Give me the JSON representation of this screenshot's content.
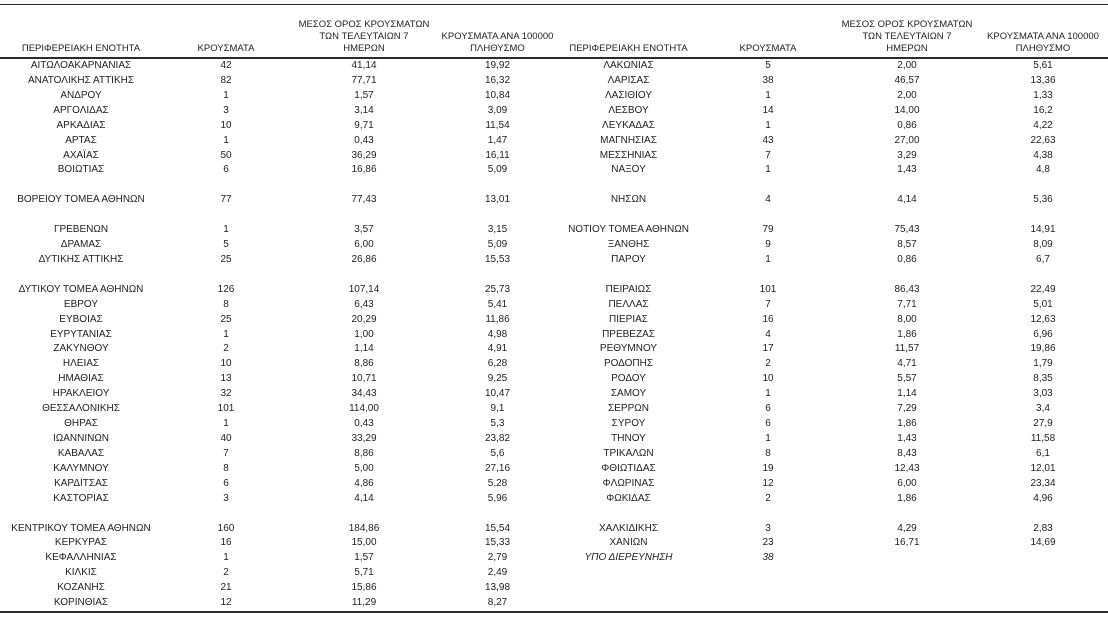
{
  "table_headers": {
    "region": "ΠΕΡΙΦΕΡΕΙΑΚΗ ΕΝΟΤΗΤΑ",
    "cases": "ΚΡΟΥΣΜΑΤΑ",
    "avg7_line1": "ΜΕΣΟΣ ΟΡΟΣ ΚΡΟΥΣΜΑΤΩΝ",
    "avg7_line2": "ΤΩΝ ΤΕΛΕΥΤΑΙΩΝ 7",
    "avg7_line3": "ΗΜΕΡΩΝ",
    "per100k_line1": "ΚΡΟΥΣΜΑΤΑ ΑΝΑ 100000",
    "per100k_line2": "ΠΛΗΘΥΣΜΟ"
  },
  "left_table_rows": [
    [
      "ΑΙΤΩΛΟΑΚΑΡΝΑΝΙΑΣ",
      "42",
      "41,14",
      "19,92"
    ],
    [
      "ΑΝΑΤΟΛΙΚΗΣ ΑΤΤΙΚΗΣ",
      "82",
      "77,71",
      "16,32"
    ],
    [
      "ΑΝΔΡΟΥ",
      "1",
      "1,57",
      "10,84"
    ],
    [
      "ΑΡΓΟΛΙΔΑΣ",
      "3",
      "3,14",
      "3,09"
    ],
    [
      "ΑΡΚΑΔΙΑΣ",
      "10",
      "9,71",
      "11,54"
    ],
    [
      "ΑΡΤΑΣ",
      "1",
      "0,43",
      "1,47"
    ],
    [
      "ΑΧΑΪΑΣ",
      "50",
      "36,29",
      "16,11"
    ],
    [
      "ΒΟΙΩΤΙΑΣ",
      "6",
      "16,86",
      "5,09"
    ],
    [],
    [
      "ΒΟΡΕΙΟΥ ΤΟΜΕΑ ΑΘΗΝΩΝ",
      "77",
      "77,43",
      "13,01"
    ],
    [],
    [
      "ΓΡΕΒΕΝΩΝ",
      "1",
      "3,57",
      "3,15"
    ],
    [
      "ΔΡΑΜΑΣ",
      "5",
      "6,00",
      "5,09"
    ],
    [
      "ΔΥΤΙΚΗΣ ΑΤΤΙΚΗΣ",
      "25",
      "26,86",
      "15,53"
    ],
    [],
    [
      "ΔΥΤΙΚΟΥ ΤΟΜΕΑ ΑΘΗΝΩΝ",
      "126",
      "107,14",
      "25,73"
    ],
    [
      "ΕΒΡΟΥ",
      "8",
      "6,43",
      "5,41"
    ],
    [
      "ΕΥΒΟΙΑΣ",
      "25",
      "20,29",
      "11,86"
    ],
    [
      "ΕΥΡΥΤΑΝΙΑΣ",
      "1",
      "1,00",
      "4,98"
    ],
    [
      "ΖΑΚΥΝΘΟΥ",
      "2",
      "1,14",
      "4,91"
    ],
    [
      "ΗΛΕΙΑΣ",
      "10",
      "8,86",
      "6,28"
    ],
    [
      "ΗΜΑΘΙΑΣ",
      "13",
      "10,71",
      "9,25"
    ],
    [
      "ΗΡΑΚΛΕΙΟΥ",
      "32",
      "34,43",
      "10,47"
    ],
    [
      "ΘΕΣΣΑΛΟΝΙΚΗΣ",
      "101",
      "114,00",
      "9,1"
    ],
    [
      "ΘΗΡΑΣ",
      "1",
      "0,43",
      "5,3"
    ],
    [
      "ΙΩΑΝΝΙΝΩΝ",
      "40",
      "33,29",
      "23,82"
    ],
    [
      "ΚΑΒΑΛΑΣ",
      "7",
      "8,86",
      "5,6"
    ],
    [
      "ΚΑΛΥΜΝΟΥ",
      "8",
      "5,00",
      "27,16"
    ],
    [
      "ΚΑΡΔΙΤΣΑΣ",
      "6",
      "4,86",
      "5,28"
    ],
    [
      "ΚΑΣΤΟΡΙΑΣ",
      "3",
      "4,14",
      "5,96"
    ],
    [],
    [
      "ΚΕΝΤΡΙΚΟΥ ΤΟΜΕΑ ΑΘΗΝΩΝ",
      "160",
      "184,86",
      "15,54"
    ],
    [
      "ΚΕΡΚΥΡΑΣ",
      "16",
      "15,00",
      "15,33"
    ],
    [
      "ΚΕΦΑΛΛΗΝΙΑΣ",
      "1",
      "1,57",
      "2,79"
    ],
    [
      "ΚΙΛΚΙΣ",
      "2",
      "5,71",
      "2,49"
    ],
    [
      "ΚΟΖΑΝΗΣ",
      "21",
      "15,86",
      "13,98"
    ],
    [
      "ΚΟΡΙΝΘΙΑΣ",
      "12",
      "11,29",
      "8,27"
    ]
  ],
  "right_table_rows": [
    [
      "ΛΑΚΩΝΙΑΣ",
      "5",
      "2,00",
      "5,61"
    ],
    [
      "ΛΑΡΙΣΑΣ",
      "38",
      "46,57",
      "13,36"
    ],
    [
      "ΛΑΣΙΘΙΟΥ",
      "1",
      "2,00",
      "1,33"
    ],
    [
      "ΛΕΣΒΟΥ",
      "14",
      "14,00",
      "16,2"
    ],
    [
      "ΛΕΥΚΑΔΑΣ",
      "1",
      "0,86",
      "4,22"
    ],
    [
      "ΜΑΓΝΗΣΙΑΣ",
      "43",
      "27,00",
      "22,63"
    ],
    [
      "ΜΕΣΣΗΝΙΑΣ",
      "7",
      "3,29",
      "4,38"
    ],
    [
      "ΝΑΞΟΥ",
      "1",
      "1,43",
      "4,8"
    ],
    [],
    [
      "ΝΗΣΩΝ",
      "4",
      "4,14",
      "5,36"
    ],
    [],
    [
      "ΝΟΤΙΟΥ ΤΟΜΕΑ ΑΘΗΝΩΝ",
      "79",
      "75,43",
      "14,91"
    ],
    [
      "ΞΑΝΘΗΣ",
      "9",
      "8,57",
      "8,09"
    ],
    [
      "ΠΑΡΟΥ",
      "1",
      "0,86",
      "6,7"
    ],
    [],
    [
      "ΠΕΙΡΑΙΩΣ",
      "101",
      "86,43",
      "22,49"
    ],
    [
      "ΠΕΛΛΑΣ",
      "7",
      "7,71",
      "5,01"
    ],
    [
      "ΠΙΕΡΙΑΣ",
      "16",
      "8,00",
      "12,63"
    ],
    [
      "ΠΡΕΒΕΖΑΣ",
      "4",
      "1,86",
      "6,96"
    ],
    [
      "ΡΕΘΥΜΝΟΥ",
      "17",
      "11,57",
      "19,86"
    ],
    [
      "ΡΟΔΟΠΗΣ",
      "2",
      "4,71",
      "1,79"
    ],
    [
      "ΡΟΔΟΥ",
      "10",
      "5,57",
      "8,35"
    ],
    [
      "ΣΑΜΟΥ",
      "1",
      "1,14",
      "3,03"
    ],
    [
      "ΣΕΡΡΩΝ",
      "6",
      "7,29",
      "3,4"
    ],
    [
      "ΣΥΡΟΥ",
      "6",
      "1,86",
      "27,9"
    ],
    [
      "ΤΗΝΟΥ",
      "1",
      "1,43",
      "11,58"
    ],
    [
      "ΤΡΙΚΑΛΩΝ",
      "8",
      "8,43",
      "6,1"
    ],
    [
      "ΦΘΙΩΤΙΔΑΣ",
      "19",
      "12,43",
      "12,01"
    ],
    [
      "ΦΛΩΡΙΝΑΣ",
      "12",
      "6,00",
      "23,34"
    ],
    [
      "ΦΩΚΙΔΑΣ",
      "2",
      "1,86",
      "4,96"
    ],
    [],
    [
      "ΧΑΛΚΙΔΙΚΗΣ",
      "3",
      "4,29",
      "2,83"
    ],
    [
      "ΧΑΝΙΩΝ",
      "23",
      "16,71",
      "14,69"
    ],
    [
      "ΥΠΟ ΔΙΕΡΕΥΝΗΣΗ",
      "38",
      "",
      "",
      "italic"
    ],
    [],
    [],
    []
  ]
}
